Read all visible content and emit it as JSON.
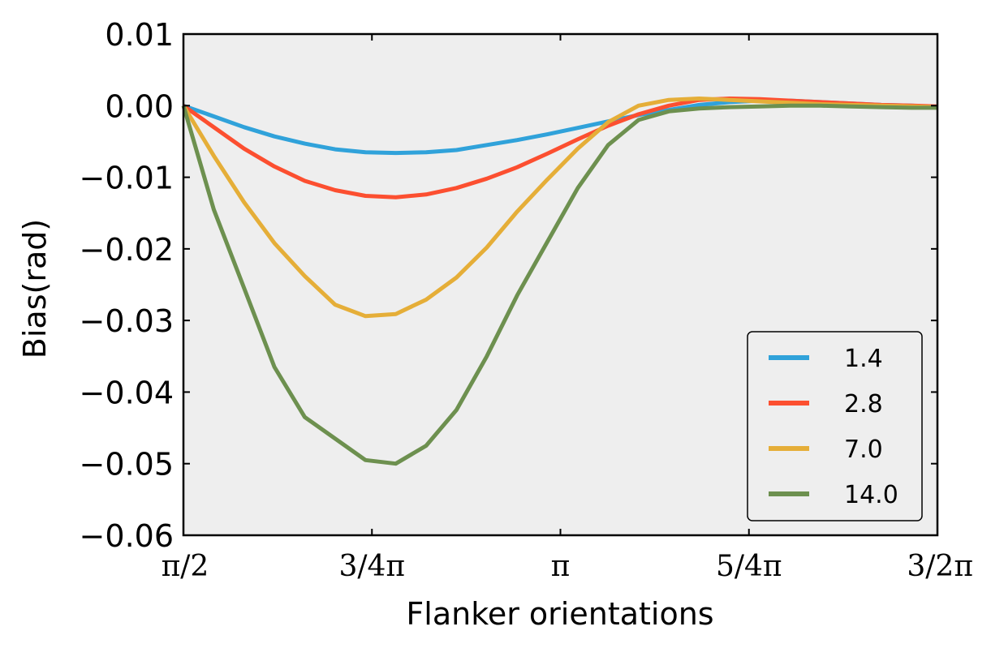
{
  "chart_data": {
    "type": "line",
    "xlabel": "Flanker orientations",
    "ylabel": "Bias(rad)",
    "xlim": [
      1.5708,
      4.7124
    ],
    "ylim": [
      -0.06,
      0.01
    ],
    "x_ticks": [
      {
        "value": 1.5708,
        "label": "π/2"
      },
      {
        "value": 2.3562,
        "label": "3/4π"
      },
      {
        "value": 3.1416,
        "label": "π"
      },
      {
        "value": 3.927,
        "label": "5/4π"
      },
      {
        "value": 4.7124,
        "label": "3/2π"
      }
    ],
    "y_ticks": [
      {
        "value": 0.01,
        "label": "0.01"
      },
      {
        "value": 0.0,
        "label": "0.00"
      },
      {
        "value": -0.01,
        "label": "−0.01"
      },
      {
        "value": -0.02,
        "label": "−0.02"
      },
      {
        "value": -0.03,
        "label": "−0.03"
      },
      {
        "value": -0.04,
        "label": "−0.04"
      },
      {
        "value": -0.05,
        "label": "−0.05"
      },
      {
        "value": -0.06,
        "label": "−0.06"
      }
    ],
    "x": [
      1.5708,
      1.6972,
      1.8236,
      1.95,
      2.0764,
      2.2028,
      2.3292,
      2.4556,
      2.582,
      2.7084,
      2.8348,
      2.9612,
      3.0876,
      3.214,
      3.3404,
      3.4668,
      3.5932,
      3.7196,
      3.846,
      3.9724,
      4.0988,
      4.2252,
      4.3516,
      4.478,
      4.6044,
      4.7124
    ],
    "series": [
      {
        "name": "1.4",
        "color": "#30a2da",
        "values": [
          0.0,
          -0.0015,
          -0.003,
          -0.0043,
          -0.0053,
          -0.0061,
          -0.0065,
          -0.0066,
          -0.0065,
          -0.0062,
          -0.0055,
          -0.0048,
          -0.004,
          -0.0031,
          -0.0022,
          -0.0013,
          -0.0006,
          0.0001,
          0.0005,
          0.0007,
          0.0007,
          0.0005,
          0.0003,
          0.0001,
          0.0,
          -0.0002
        ]
      },
      {
        "name": "2.8",
        "color": "#fc4f30",
        "values": [
          0.0,
          -0.003,
          -0.006,
          -0.0085,
          -0.0105,
          -0.0118,
          -0.0126,
          -0.0128,
          -0.0124,
          -0.0115,
          -0.0102,
          -0.0086,
          -0.0067,
          -0.0047,
          -0.0028,
          -0.0012,
          0.0,
          0.0008,
          0.001,
          0.0009,
          0.0007,
          0.0005,
          0.0003,
          0.0001,
          0.0,
          -0.0001
        ]
      },
      {
        "name": "7.0",
        "color": "#e5ae38",
        "values": [
          0.0,
          -0.007,
          -0.0135,
          -0.0192,
          -0.0238,
          -0.0278,
          -0.0294,
          -0.0291,
          -0.0271,
          -0.024,
          -0.0198,
          -0.0148,
          -0.0103,
          -0.006,
          -0.0023,
          0.0,
          0.0008,
          0.001,
          0.0008,
          0.0006,
          0.0004,
          0.0002,
          0.0001,
          0.0,
          -0.0001,
          -0.0002
        ]
      },
      {
        "name": "14.0",
        "color": "#6d904f",
        "values": [
          0.0,
          -0.0145,
          -0.0255,
          -0.0365,
          -0.0435,
          -0.0465,
          -0.0495,
          -0.05,
          -0.0475,
          -0.0425,
          -0.035,
          -0.0265,
          -0.019,
          -0.0115,
          -0.0055,
          -0.002,
          -0.0008,
          -0.0004,
          -0.0002,
          -0.0001,
          0.0,
          0.0,
          -0.0001,
          -0.0002,
          -0.0003,
          -0.0003
        ]
      }
    ],
    "grid": false,
    "legend_position": "bottom-right",
    "plot_background": "#eeeeee"
  }
}
